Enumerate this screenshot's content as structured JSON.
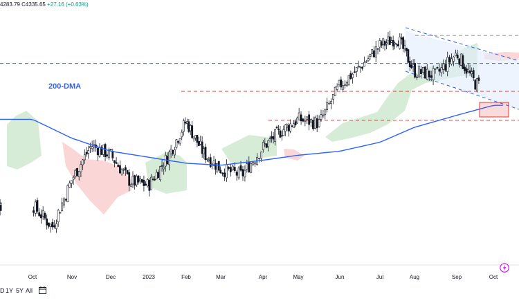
{
  "header": {
    "ohlc_prefix": "4283.79  C4335.65",
    "change": "+27.16 (+0.63%)"
  },
  "range_buttons": [
    "D",
    "1Y",
    "5Y",
    "All"
  ],
  "icons": {
    "calendar": "calendar-icon",
    "flash": "lightning-icon"
  },
  "colors": {
    "up_candle": "#ffffff",
    "down_candle": "#131722",
    "ma_line": "#2962ff",
    "cloud_bull": "#c8e6c9",
    "cloud_bear": "#f8c8c8",
    "level_blue": "#2962ff",
    "level_red": "#e53935",
    "box_red": "#e53935",
    "flash_icon": "#d500f9",
    "label_blue": "#2962ff"
  },
  "chart_data": {
    "type": "line",
    "title": "",
    "xlabel": "",
    "ylabel": "",
    "x_tick_labels": [
      "Oct",
      "Nov",
      "Dec",
      "2023",
      "Feb",
      "Mar",
      "Apr",
      "May",
      "Jun",
      "Jul",
      "Aug",
      "Sep",
      "Oct"
    ],
    "y_range_units": "index points (approx)",
    "ylim": [
      3450,
      4750
    ],
    "annotations": [
      {
        "text": "200-DMA",
        "target": "moving-average"
      }
    ],
    "series": [
      {
        "name": "200-DMA",
        "style": "line",
        "x_month_index": [
          0,
          1,
          2,
          3,
          4,
          5,
          6,
          7,
          8,
          9,
          10,
          11,
          12
        ],
        "values": [
          4180,
          4085,
          4020,
          3990,
          3960,
          3950,
          3975,
          4000,
          4020,
          4065,
          4140,
          4200,
          4250
        ]
      },
      {
        "style": "candlestick-close-path",
        "x_month_index": [
          0,
          0.5,
          1,
          1.5,
          2,
          2.5,
          3,
          3.5,
          4,
          4.5,
          5,
          5.5,
          6,
          6.5,
          7,
          7.5,
          8,
          8.5,
          9,
          9.5,
          10,
          10.5,
          11,
          11.5,
          12
        ],
        "values": [
          3750,
          3640,
          3880,
          4050,
          4000,
          3870,
          3850,
          3990,
          4170,
          4010,
          3930,
          3900,
          4040,
          4120,
          4180,
          4160,
          4350,
          4440,
          4550,
          4590,
          4420,
          4400,
          4510,
          4360,
          4335
        ]
      }
    ],
    "levels": [
      {
        "kind": "horizontal-dashed",
        "color": "blue",
        "value": 4460
      },
      {
        "kind": "horizontal-dashed",
        "color": "blue",
        "value": 4600
      },
      {
        "kind": "horizontal-dashed",
        "color": "red",
        "value": 4320
      },
      {
        "kind": "horizontal-dashed",
        "color": "red",
        "value": 4175
      },
      {
        "kind": "descending-channel",
        "color": "blue"
      },
      {
        "kind": "highlight-box",
        "color": "red"
      }
    ]
  }
}
